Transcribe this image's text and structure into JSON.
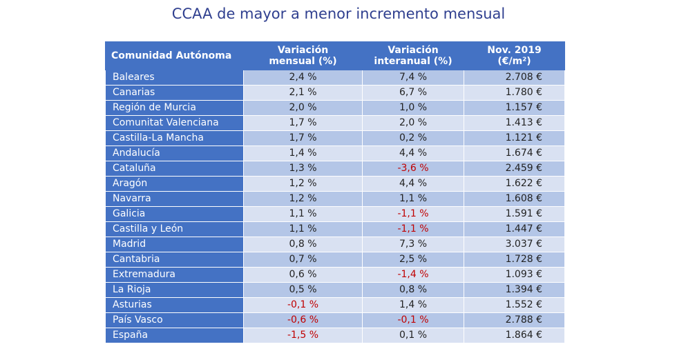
{
  "title": "CCAA de mayor a menor incremento mensual",
  "table": {
    "headers": {
      "region": "Comunidad Autónoma",
      "monthly": [
        "Variación",
        "mensual (%)"
      ],
      "annual": [
        "Variación",
        "interanual (%)"
      ],
      "price": [
        "Nov. 2019",
        "(€/m²)"
      ]
    },
    "rows": [
      {
        "region": "Baleares",
        "monthly": "2,4 %",
        "annual": "7,4 %",
        "price": "2.708 €"
      },
      {
        "region": "Canarias",
        "monthly": "2,1 %",
        "annual": "6,7 %",
        "price": "1.780 €"
      },
      {
        "region": "Región de Murcia",
        "monthly": "2,0 %",
        "annual": "1,0 %",
        "price": "1.157 €"
      },
      {
        "region": "Comunitat Valenciana",
        "monthly": "1,7 %",
        "annual": "2,0 %",
        "price": "1.413 €"
      },
      {
        "region": "Castilla-La Mancha",
        "monthly": "1,7 %",
        "annual": "0,2 %",
        "price": "1.121 €"
      },
      {
        "region": "Andalucía",
        "monthly": "1,4 %",
        "annual": "4,4 %",
        "price": "1.674 €"
      },
      {
        "region": "Cataluña",
        "monthly": "1,3 %",
        "annual": "-3,6 %",
        "price": "2.459 €"
      },
      {
        "region": "Aragón",
        "monthly": "1,2 %",
        "annual": "4,4 %",
        "price": "1.622 €"
      },
      {
        "region": "Navarra",
        "monthly": "1,2 %",
        "annual": "1,1 %",
        "price": "1.608 €"
      },
      {
        "region": "Galicia",
        "monthly": "1,1 %",
        "annual": "-1,1 %",
        "price": "1.591 €"
      },
      {
        "region": "Castilla y León",
        "monthly": "1,1 %",
        "annual": "-1,1 %",
        "price": "1.447 €"
      },
      {
        "region": "Madrid",
        "monthly": "0,8 %",
        "annual": "7,3 %",
        "price": "3.037 €"
      },
      {
        "region": "Cantabria",
        "monthly": "0,7 %",
        "annual": "2,5 %",
        "price": "1.728 €"
      },
      {
        "region": "Extremadura",
        "monthly": "0,6 %",
        "annual": "-1,4 %",
        "price": "1.093 €"
      },
      {
        "region": "La Rioja",
        "monthly": "0,5 %",
        "annual": "0,8 %",
        "price": "1.394 €"
      },
      {
        "region": "Asturias",
        "monthly": "-0,1 %",
        "annual": "1,4 %",
        "price": "1.552 €"
      },
      {
        "region": "País Vasco",
        "monthly": "-0,6 %",
        "annual": "-0,1 %",
        "price": "2.788 €"
      },
      {
        "region": "España",
        "monthly": "-1,5 %",
        "annual": "0,1 %",
        "price": "1.864 €"
      }
    ]
  },
  "colors": {
    "header_bg": "#4472c4",
    "row_odd": "#b4c6e7",
    "row_even": "#d9e1f2",
    "negative": "#c00000",
    "title": "#2f3f8f"
  }
}
